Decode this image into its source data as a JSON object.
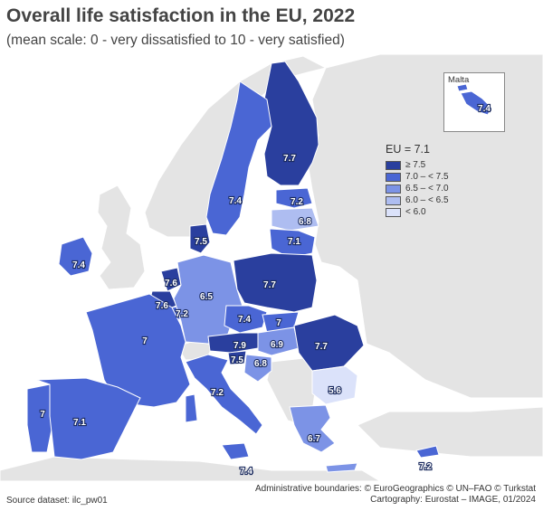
{
  "title": "Overall life satisfaction in the EU, 2022",
  "subtitle": "(mean scale: 0 - very dissatisfied to 10 - very satisfied)",
  "legend": {
    "title": "EU = 7.1",
    "classes": [
      {
        "label": "≥ 7.5",
        "color": "#2a3f9e"
      },
      {
        "label": "7.0 – < 7.5",
        "color": "#4a66d4"
      },
      {
        "label": "6.5 – < 7.0",
        "color": "#7c93e6"
      },
      {
        "label": "6.0 – < 6.5",
        "color": "#aebdf1"
      },
      {
        "label": "< 6.0",
        "color": "#dbe2fa"
      }
    ]
  },
  "inset": {
    "title": "Malta",
    "value": "7.4"
  },
  "colors": {
    "non_eu": "#e4e4e4",
    "sea": "#ffffff",
    "border": "#ffffff"
  },
  "regions": [
    {
      "id": "finland",
      "value": "7.7"
    },
    {
      "id": "sweden",
      "value": "7.4"
    },
    {
      "id": "estonia",
      "value": "7.2"
    },
    {
      "id": "latvia",
      "value": "6.8"
    },
    {
      "id": "lithuania",
      "value": "7.1"
    },
    {
      "id": "denmark",
      "value": "7.5"
    },
    {
      "id": "ireland",
      "value": "7.4"
    },
    {
      "id": "netherlands",
      "value": "7.6"
    },
    {
      "id": "belgium",
      "value": "7.6"
    },
    {
      "id": "luxembourg",
      "value": "7.2"
    },
    {
      "id": "germany",
      "value": "6.5"
    },
    {
      "id": "poland",
      "value": "7.7"
    },
    {
      "id": "czechia",
      "value": "7.4"
    },
    {
      "id": "slovakia",
      "value": "7"
    },
    {
      "id": "austria",
      "value": "7.9"
    },
    {
      "id": "hungary",
      "value": "6.9"
    },
    {
      "id": "slovenia",
      "value": "7.5"
    },
    {
      "id": "croatia",
      "value": "6.8"
    },
    {
      "id": "romania",
      "value": "7.7"
    },
    {
      "id": "bulgaria",
      "value": "5.6"
    },
    {
      "id": "france",
      "value": "7"
    },
    {
      "id": "italy",
      "value": "7.2"
    },
    {
      "id": "portugal",
      "value": "7"
    },
    {
      "id": "spain",
      "value": "7.1"
    },
    {
      "id": "greece",
      "value": "6.7"
    },
    {
      "id": "malta_sicily_label",
      "value": "7.4"
    },
    {
      "id": "cyprus",
      "value": "7.2"
    }
  ],
  "footer": {
    "source": "Source dataset: ilc_pw01",
    "credits_line1": "Administrative boundaries: © EuroGeographics © UN–FAO © Turkstat",
    "credits_line2": "Cartography: Eurostat – IMAGE, 01/2024"
  }
}
